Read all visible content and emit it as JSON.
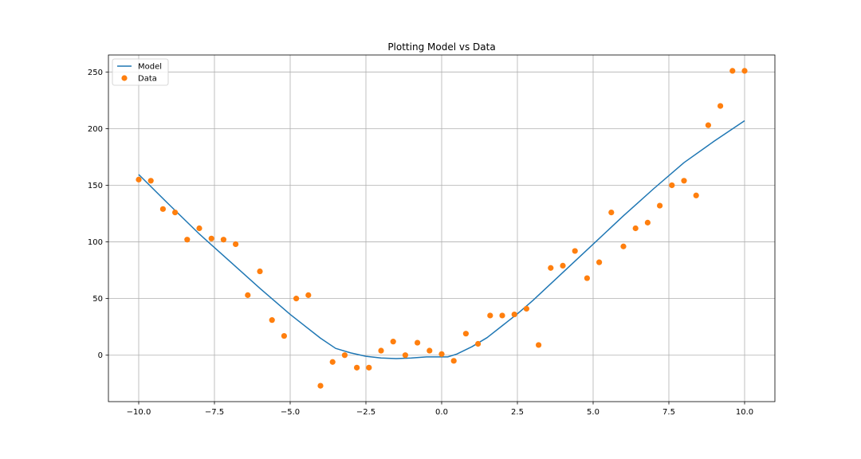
{
  "chart_data": {
    "type": "line+scatter",
    "title": "Plotting Model vs Data",
    "xlabel": "",
    "ylabel": "",
    "xlim": [
      -11.0,
      11.0
    ],
    "ylim": [
      -41,
      265
    ],
    "grid": true,
    "legend_position": "top-left",
    "x_ticks": [
      -10.0,
      -7.5,
      -5.0,
      -2.5,
      0.0,
      2.5,
      5.0,
      7.5,
      10.0
    ],
    "x_tick_labels": [
      "−10.0",
      "−7.5",
      "−5.0",
      "−2.5",
      "0.0",
      "2.5",
      "5.0",
      "7.5",
      "10.0"
    ],
    "y_ticks": [
      0,
      50,
      100,
      150,
      200,
      250
    ],
    "y_tick_labels": [
      "0",
      "50",
      "100",
      "150",
      "200",
      "250"
    ],
    "series": [
      {
        "name": "Model",
        "kind": "line",
        "color": "#1f77b4",
        "x": [
          -10.0,
          -9.0,
          -8.0,
          -7.0,
          -6.0,
          -5.0,
          -4.0,
          -3.5,
          -3.0,
          -2.5,
          -2.0,
          -1.5,
          -1.0,
          -0.5,
          0.0,
          0.2,
          0.5,
          1.0,
          1.5,
          2.0,
          2.5,
          3.0,
          4.0,
          5.0,
          6.0,
          7.0,
          8.0,
          9.0,
          10.0
        ],
        "y": [
          159.5,
          133.0,
          107.0,
          83.0,
          59.0,
          36.0,
          15.0,
          6.0,
          2.0,
          -1.0,
          -2.5,
          -3.0,
          -2.5,
          -1.5,
          -1.5,
          -1.5,
          1.0,
          7.5,
          15.5,
          26.0,
          36.5,
          48.0,
          73.0,
          98.0,
          123.0,
          147.0,
          170.0,
          189.0,
          207.0
        ]
      },
      {
        "name": "Data",
        "kind": "scatter",
        "color": "#ff7f0e",
        "x": [
          -10.0,
          -9.6,
          -9.2,
          -8.8,
          -8.4,
          -8.0,
          -7.6,
          -7.2,
          -6.8,
          -6.4,
          -6.0,
          -5.6,
          -5.2,
          -4.8,
          -4.4,
          -4.0,
          -3.6,
          -3.2,
          -2.8,
          -2.4,
          -2.0,
          -1.6,
          -1.2,
          -0.8,
          -0.4,
          0.0,
          0.4,
          0.8,
          1.2,
          1.6,
          2.0,
          2.4,
          2.8,
          3.2,
          3.6,
          4.0,
          4.4,
          4.8,
          5.2,
          5.6,
          6.0,
          6.4,
          6.8,
          7.2,
          7.6,
          8.0,
          8.4,
          8.8,
          9.2,
          9.6,
          10.0
        ],
        "y": [
          155,
          154,
          129,
          126,
          102,
          112,
          103,
          102,
          98,
          53,
          74,
          31,
          17,
          50,
          53,
          -27,
          -6,
          0,
          -11,
          -11,
          4,
          12,
          0,
          11,
          4,
          1,
          -5,
          19,
          10,
          35,
          35,
          36,
          41,
          9,
          77,
          79,
          92,
          68,
          82,
          126,
          96,
          112,
          117,
          132,
          150,
          154,
          141,
          203,
          220,
          251,
          251
        ]
      }
    ]
  }
}
